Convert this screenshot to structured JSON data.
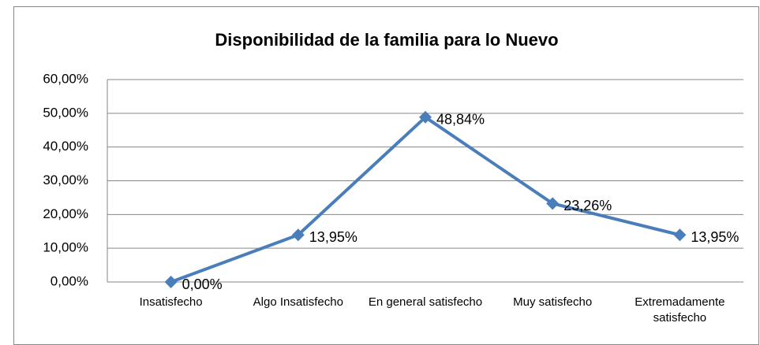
{
  "chart_data": {
    "type": "line",
    "title": "Disponibilidad de la familia para lo Nuevo",
    "categories": [
      "Insatisfecho",
      "Algo Insatisfecho",
      "En general satisfecho",
      "Muy satisfecho",
      "Extremadamente satisfecho"
    ],
    "series": [
      {
        "name": "Disponibilidad",
        "color": "#4a7ebb",
        "values": [
          0,
          13.95,
          48.84,
          23.26,
          13.95
        ],
        "value_labels": [
          "0,00%",
          "13,95%",
          "48,84%",
          "23,26%",
          "13,95%"
        ]
      }
    ],
    "ylim": [
      0,
      60
    ],
    "yticks": [
      {
        "value": 0,
        "label": "0,00%"
      },
      {
        "value": 10,
        "label": "10,00%"
      },
      {
        "value": 20,
        "label": "20,00%"
      },
      {
        "value": 30,
        "label": "30,00%"
      },
      {
        "value": 40,
        "label": "40,00%"
      },
      {
        "value": 50,
        "label": "50,00%"
      },
      {
        "value": 60,
        "label": "60,00%"
      }
    ],
    "grid": true
  }
}
